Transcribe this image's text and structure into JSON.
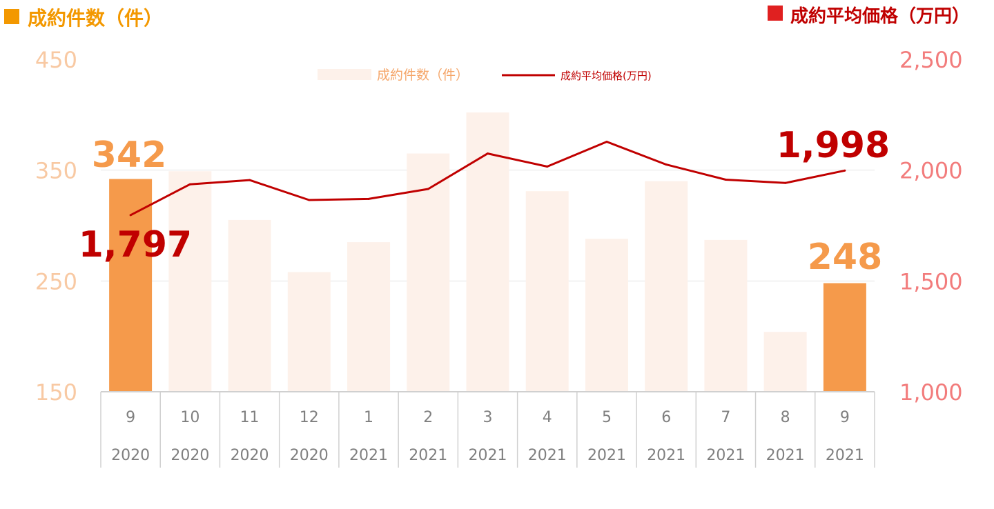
{
  "chart_data": {
    "type": "bar+line",
    "left_title": "成約件数（件）",
    "right_title": "成約平均価格（万円）",
    "left_axis": {
      "ylim": [
        150,
        450
      ],
      "ticks": [
        "150",
        "250",
        "350",
        "450"
      ],
      "tick_values": [
        150,
        250,
        350,
        450
      ]
    },
    "right_axis": {
      "ylim": [
        1000,
        2500
      ],
      "ticks": [
        "1,000",
        "1,500",
        "2,000",
        "2,500"
      ],
      "tick_values": [
        1000,
        1500,
        2000,
        2500
      ]
    },
    "legend": {
      "placement": "top-center",
      "bar_label": "成約件数（件）",
      "line_label": "成約平均価格(万円)"
    },
    "categories_month": [
      "9",
      "10",
      "11",
      "12",
      "1",
      "2",
      "3",
      "4",
      "5",
      "6",
      "7",
      "8",
      "9"
    ],
    "categories_year": [
      "2020",
      "2020",
      "2020",
      "2020",
      "2021",
      "2021",
      "2021",
      "2021",
      "2021",
      "2021",
      "2021",
      "2021",
      "2021"
    ],
    "series": [
      {
        "name": "成約件数（件）",
        "type": "bar",
        "values": [
          342,
          349,
          305,
          258,
          285,
          365,
          402,
          331,
          288,
          340,
          287,
          204,
          248
        ]
      },
      {
        "name": "成約平均価格(万円)",
        "type": "line",
        "values": [
          1797,
          1936,
          1955,
          1865,
          1870,
          1915,
          2075,
          2016,
          2128,
          2025,
          1957,
          1942,
          1998
        ]
      }
    ],
    "highlight_indices": [
      0,
      12
    ],
    "annotations": {
      "bar_first": "342",
      "bar_last": "248",
      "line_first": "1,797",
      "line_last": "1,998"
    },
    "grid": true
  },
  "colors": {
    "bar_highlight": "#F59A4B",
    "bar_faded": "#FDF1EA",
    "line": "#C00000",
    "left_axis_text": "#F8C9A3",
    "right_axis_text": "#F27C7C",
    "left_title": "#F39800",
    "left_square": "#F39800",
    "right_title": "#C00000",
    "right_square": "#E02020",
    "bar_label": "#F59A4B",
    "line_label": "#C00000",
    "legend_bar_text": "#F5A66A",
    "legend_line_text": "#C00000",
    "gridline": "#E3E3E3",
    "category_text": "#7F7F7F",
    "category_border": "#D0D0D0"
  }
}
